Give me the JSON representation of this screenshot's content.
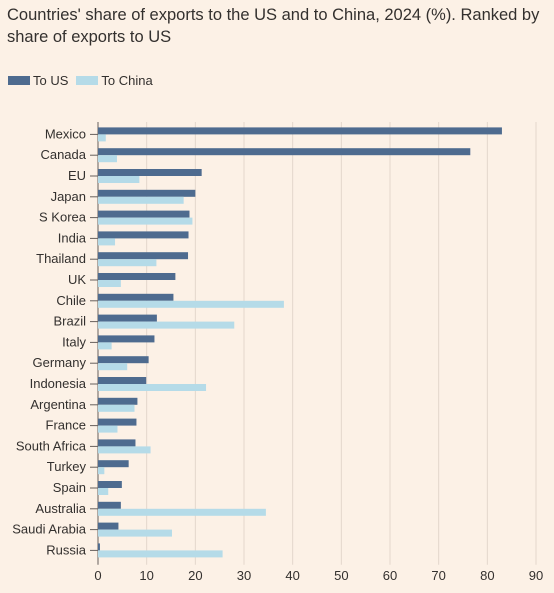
{
  "chart_data": {
    "type": "bar",
    "orientation": "horizontal",
    "title": "Countries' share of exports to the US and to China, 2024 (%). Ranked by share of exports to US",
    "categories": [
      "Mexico",
      "Canada",
      "EU",
      "Japan",
      "S Korea",
      "India",
      "Thailand",
      "UK",
      "Chile",
      "Brazil",
      "Italy",
      "Germany",
      "Indonesia",
      "Argentina",
      "France",
      "South Africa",
      "Turkey",
      "Spain",
      "Australia",
      "Saudi Arabia",
      "Russia"
    ],
    "series": [
      {
        "name": "To US",
        "color": "#4e6b8f",
        "values": [
          83.0,
          76.5,
          21.3,
          20.0,
          18.8,
          18.6,
          18.5,
          15.9,
          15.5,
          12.1,
          11.6,
          10.4,
          9.9,
          8.1,
          7.9,
          7.7,
          6.3,
          4.9,
          4.7,
          4.2,
          0.4
        ]
      },
      {
        "name": "To China",
        "color": "#b5dbe8",
        "values": [
          1.6,
          3.9,
          8.5,
          17.6,
          19.4,
          3.5,
          12.0,
          4.7,
          38.2,
          28.0,
          2.8,
          6.0,
          22.2,
          7.5,
          4.0,
          10.8,
          1.3,
          2.1,
          34.5,
          15.2,
          25.6
        ]
      }
    ],
    "xlim": [
      0,
      90
    ],
    "xticks": [
      0,
      10,
      20,
      30,
      40,
      50,
      60,
      70,
      80,
      90
    ],
    "grid": "vertical",
    "legend": "top-left"
  }
}
